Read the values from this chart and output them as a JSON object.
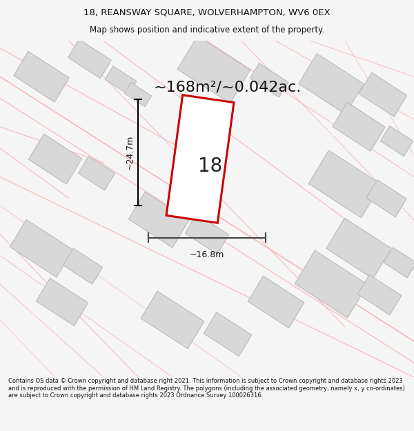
{
  "title_line1": "18, REANSWAY SQUARE, WOLVERHAMPTON, WV6 0EX",
  "title_line2": "Map shows position and indicative extent of the property.",
  "area_text": "~168m²/~0.042ac.",
  "dim_height": "~24.7m",
  "dim_width": "~16.8m",
  "plot_number": "18",
  "footer_text": "Contains OS data © Crown copyright and database right 2021. This information is subject to Crown copyright and database rights 2023 and is reproduced with the permission of HM Land Registry. The polygons (including the associated geometry, namely x, y co-ordinates) are subject to Crown copyright and database rights 2023 Ordnance Survey 100026316.",
  "bg_color": "#f5f5f5",
  "map_bg": "#f8f8f8",
  "plot_fill": "#ffffff",
  "plot_edge": "#cc0000",
  "block_fill": "#d8d8d8",
  "block_edge": "#bbbbbb",
  "road_color": "#f5b8b8",
  "title_color": "#111111",
  "footer_color": "#111111",
  "title_fontsize": 9.5,
  "subtitle_fontsize": 8.5,
  "area_fontsize": 16,
  "dim_fontsize": 9,
  "plot_num_fontsize": 20,
  "footer_fontsize": 6.0
}
